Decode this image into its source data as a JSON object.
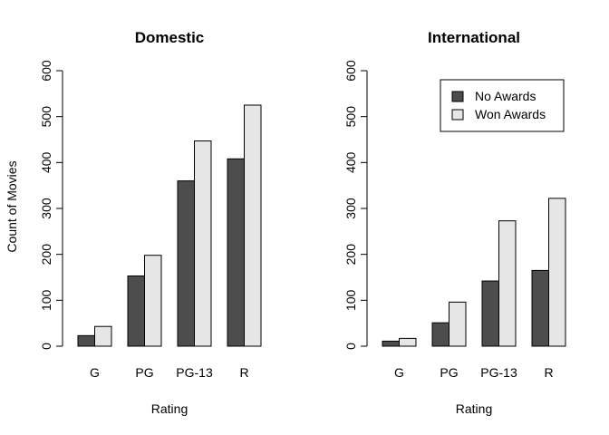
{
  "chart_data": [
    {
      "type": "bar",
      "title": "Domestic",
      "xlabel": "Rating",
      "ylabel": "Count of Movies",
      "categories": [
        "G",
        "PG",
        "PG-13",
        "R"
      ],
      "ylim": [
        0,
        600
      ],
      "yticks": [
        0,
        100,
        200,
        300,
        400,
        500,
        600
      ],
      "series": [
        {
          "name": "No Awards",
          "color": "#4d4d4d",
          "values": [
            23,
            153,
            360,
            408
          ]
        },
        {
          "name": "Won Awards",
          "color": "#e6e6e6",
          "values": [
            43,
            198,
            447,
            525
          ]
        }
      ],
      "legend": null
    },
    {
      "type": "bar",
      "title": "International",
      "xlabel": "Rating",
      "ylabel": "",
      "categories": [
        "G",
        "PG",
        "PG-13",
        "R"
      ],
      "ylim": [
        0,
        600
      ],
      "yticks": [
        0,
        100,
        200,
        300,
        400,
        500,
        600
      ],
      "series": [
        {
          "name": "No Awards",
          "color": "#4d4d4d",
          "values": [
            11,
            51,
            142,
            165
          ]
        },
        {
          "name": "Won Awards",
          "color": "#e6e6e6",
          "values": [
            17,
            96,
            273,
            322
          ]
        }
      ],
      "legend": "top-right"
    }
  ]
}
